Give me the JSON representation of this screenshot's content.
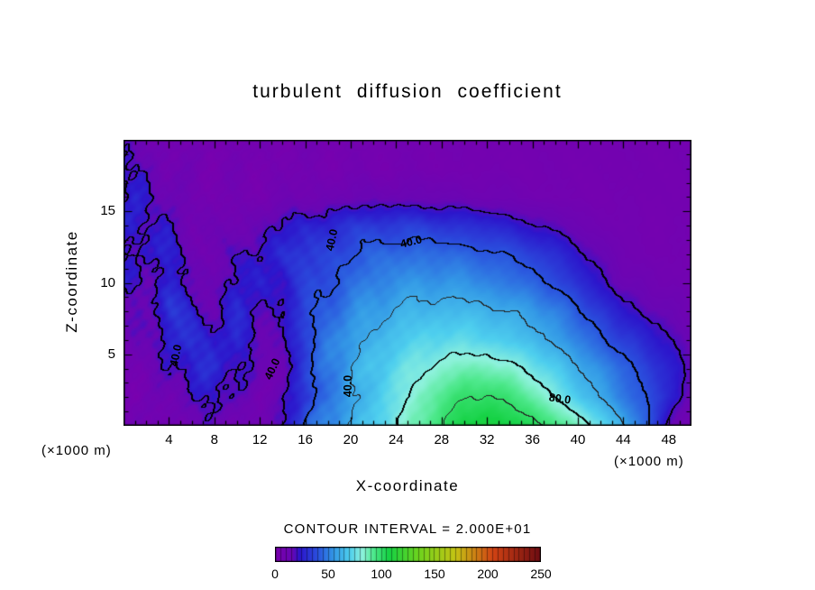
{
  "chart_data": {
    "type": "heatmap",
    "subtype": "filled-contour",
    "title": "turbulent diffusion coefficient",
    "xlabel": "X-coordinate",
    "ylabel": "Z-coordinate",
    "x_unit_label": "(×1000 m)",
    "z_unit_label": "(×1000 m)",
    "caption": "CONTOUR INTERVAL = 2.000E+01",
    "xlim": [
      0,
      50
    ],
    "zlim": [
      0,
      20
    ],
    "x_ticks": [
      4,
      8,
      12,
      16,
      20,
      24,
      28,
      32,
      36,
      40,
      44,
      48
    ],
    "z_ticks": [
      5,
      10,
      15
    ],
    "x_minor_step": 1,
    "z_minor_step": 1,
    "contour_interval": 20,
    "labeled_contours": [
      40,
      80
    ],
    "thick_contours": [
      20,
      40,
      80
    ],
    "contour_labels": [
      {
        "text": "40.0",
        "x": 25.3,
        "z": 12.9,
        "rot": -14
      },
      {
        "text": "40.0",
        "x": 18.3,
        "z": 13.0,
        "rot": -78
      },
      {
        "text": "40.0",
        "x": 13.1,
        "z": 4.0,
        "rot": -65
      },
      {
        "text": "40.0",
        "x": 19.8,
        "z": 2.8,
        "rot": -90
      },
      {
        "text": "40.0",
        "x": 4.6,
        "z": 4.9,
        "rot": -78
      },
      {
        "text": "80.0",
        "x": 38.4,
        "z": 1.9,
        "rot": 8
      }
    ],
    "grid": {
      "x": [
        0,
        2,
        4,
        6,
        8,
        10,
        12,
        14,
        16,
        18,
        20,
        22,
        24,
        26,
        28,
        30,
        32,
        34,
        36,
        38,
        40,
        42,
        44,
        46,
        48,
        50
      ],
      "z_rows_top_to_bottom": [
        20,
        18,
        16,
        14,
        12,
        10,
        8,
        6,
        4,
        2,
        0
      ],
      "values_z20_to_z0": [
        [
          14,
          10,
          7,
          6,
          6,
          6,
          6,
          6,
          6,
          6,
          6,
          6,
          6,
          6,
          6,
          6,
          6,
          6,
          6,
          6,
          6,
          6,
          6,
          6,
          6,
          6
        ],
        [
          22,
          16,
          10,
          7,
          6,
          6,
          6,
          6,
          6,
          6,
          6,
          6,
          6,
          6,
          6,
          6,
          6,
          6,
          6,
          6,
          6,
          6,
          6,
          6,
          6,
          6
        ],
        [
          18,
          24,
          14,
          8,
          6,
          6,
          7,
          8,
          10,
          12,
          13,
          14,
          14,
          14,
          13,
          12,
          11,
          10,
          8,
          7,
          6,
          6,
          6,
          6,
          6,
          6
        ],
        [
          26,
          18,
          22,
          12,
          8,
          12,
          16,
          21,
          25,
          29,
          31,
          33,
          34,
          33,
          32,
          30,
          28,
          25,
          21,
          17,
          13,
          9,
          7,
          6,
          6,
          6
        ],
        [
          16,
          28,
          22,
          14,
          10,
          18,
          24,
          28,
          32,
          36,
          40,
          43,
          46,
          46,
          45,
          44,
          42,
          39,
          35,
          29,
          23,
          15,
          10,
          7,
          6,
          6
        ],
        [
          22,
          14,
          26,
          18,
          12,
          22,
          26,
          23,
          33,
          40,
          45,
          50,
          53,
          55,
          55,
          54,
          51,
          48,
          44,
          38,
          30,
          22,
          14,
          11,
          9,
          7
        ],
        [
          12,
          20,
          30,
          24,
          16,
          26,
          21,
          19,
          36,
          44,
          51,
          57,
          61,
          63,
          64,
          64,
          62,
          60,
          56,
          50,
          42,
          32,
          24,
          18,
          14,
          11
        ],
        [
          8,
          14,
          26,
          32,
          22,
          28,
          17,
          15,
          38,
          48,
          56,
          62,
          67,
          71,
          73,
          73,
          71,
          68,
          64,
          58,
          50,
          42,
          34,
          27,
          21,
          14
        ],
        [
          6,
          10,
          18,
          28,
          26,
          23,
          13,
          12,
          36,
          48,
          59,
          67,
          73,
          79,
          83,
          87,
          87,
          83,
          77,
          69,
          61,
          53,
          44,
          36,
          26,
          17
        ],
        [
          9,
          6,
          10,
          20,
          22,
          17,
          9,
          15,
          34,
          46,
          57,
          67,
          75,
          85,
          93,
          99,
          101,
          97,
          89,
          79,
          69,
          59,
          49,
          40,
          28,
          14
        ],
        [
          11,
          8,
          6,
          13,
          15,
          10,
          8,
          20,
          42,
          52,
          61,
          69,
          79,
          89,
          99,
          107,
          110,
          108,
          103,
          96,
          86,
          74,
          61,
          45,
          16,
          7
        ]
      ]
    },
    "colormap_stops": [
      [
        0,
        "#7a00ae"
      ],
      [
        16,
        "#6806b4"
      ],
      [
        23,
        "#2c16cc"
      ],
      [
        40,
        "#2a52de"
      ],
      [
        55,
        "#3398e6"
      ],
      [
        70,
        "#4ecfee"
      ],
      [
        82,
        "#8ef2dc"
      ],
      [
        93,
        "#4ce88a"
      ],
      [
        107,
        "#16d245"
      ],
      [
        135,
        "#6ed41e"
      ],
      [
        170,
        "#c6c414"
      ],
      [
        205,
        "#d24414"
      ],
      [
        250,
        "#6e0c12"
      ]
    ],
    "colorbar": {
      "min": 0,
      "max": 250,
      "ticks": [
        0,
        50,
        100,
        150,
        200,
        250
      ],
      "stripe_step": 5
    }
  }
}
